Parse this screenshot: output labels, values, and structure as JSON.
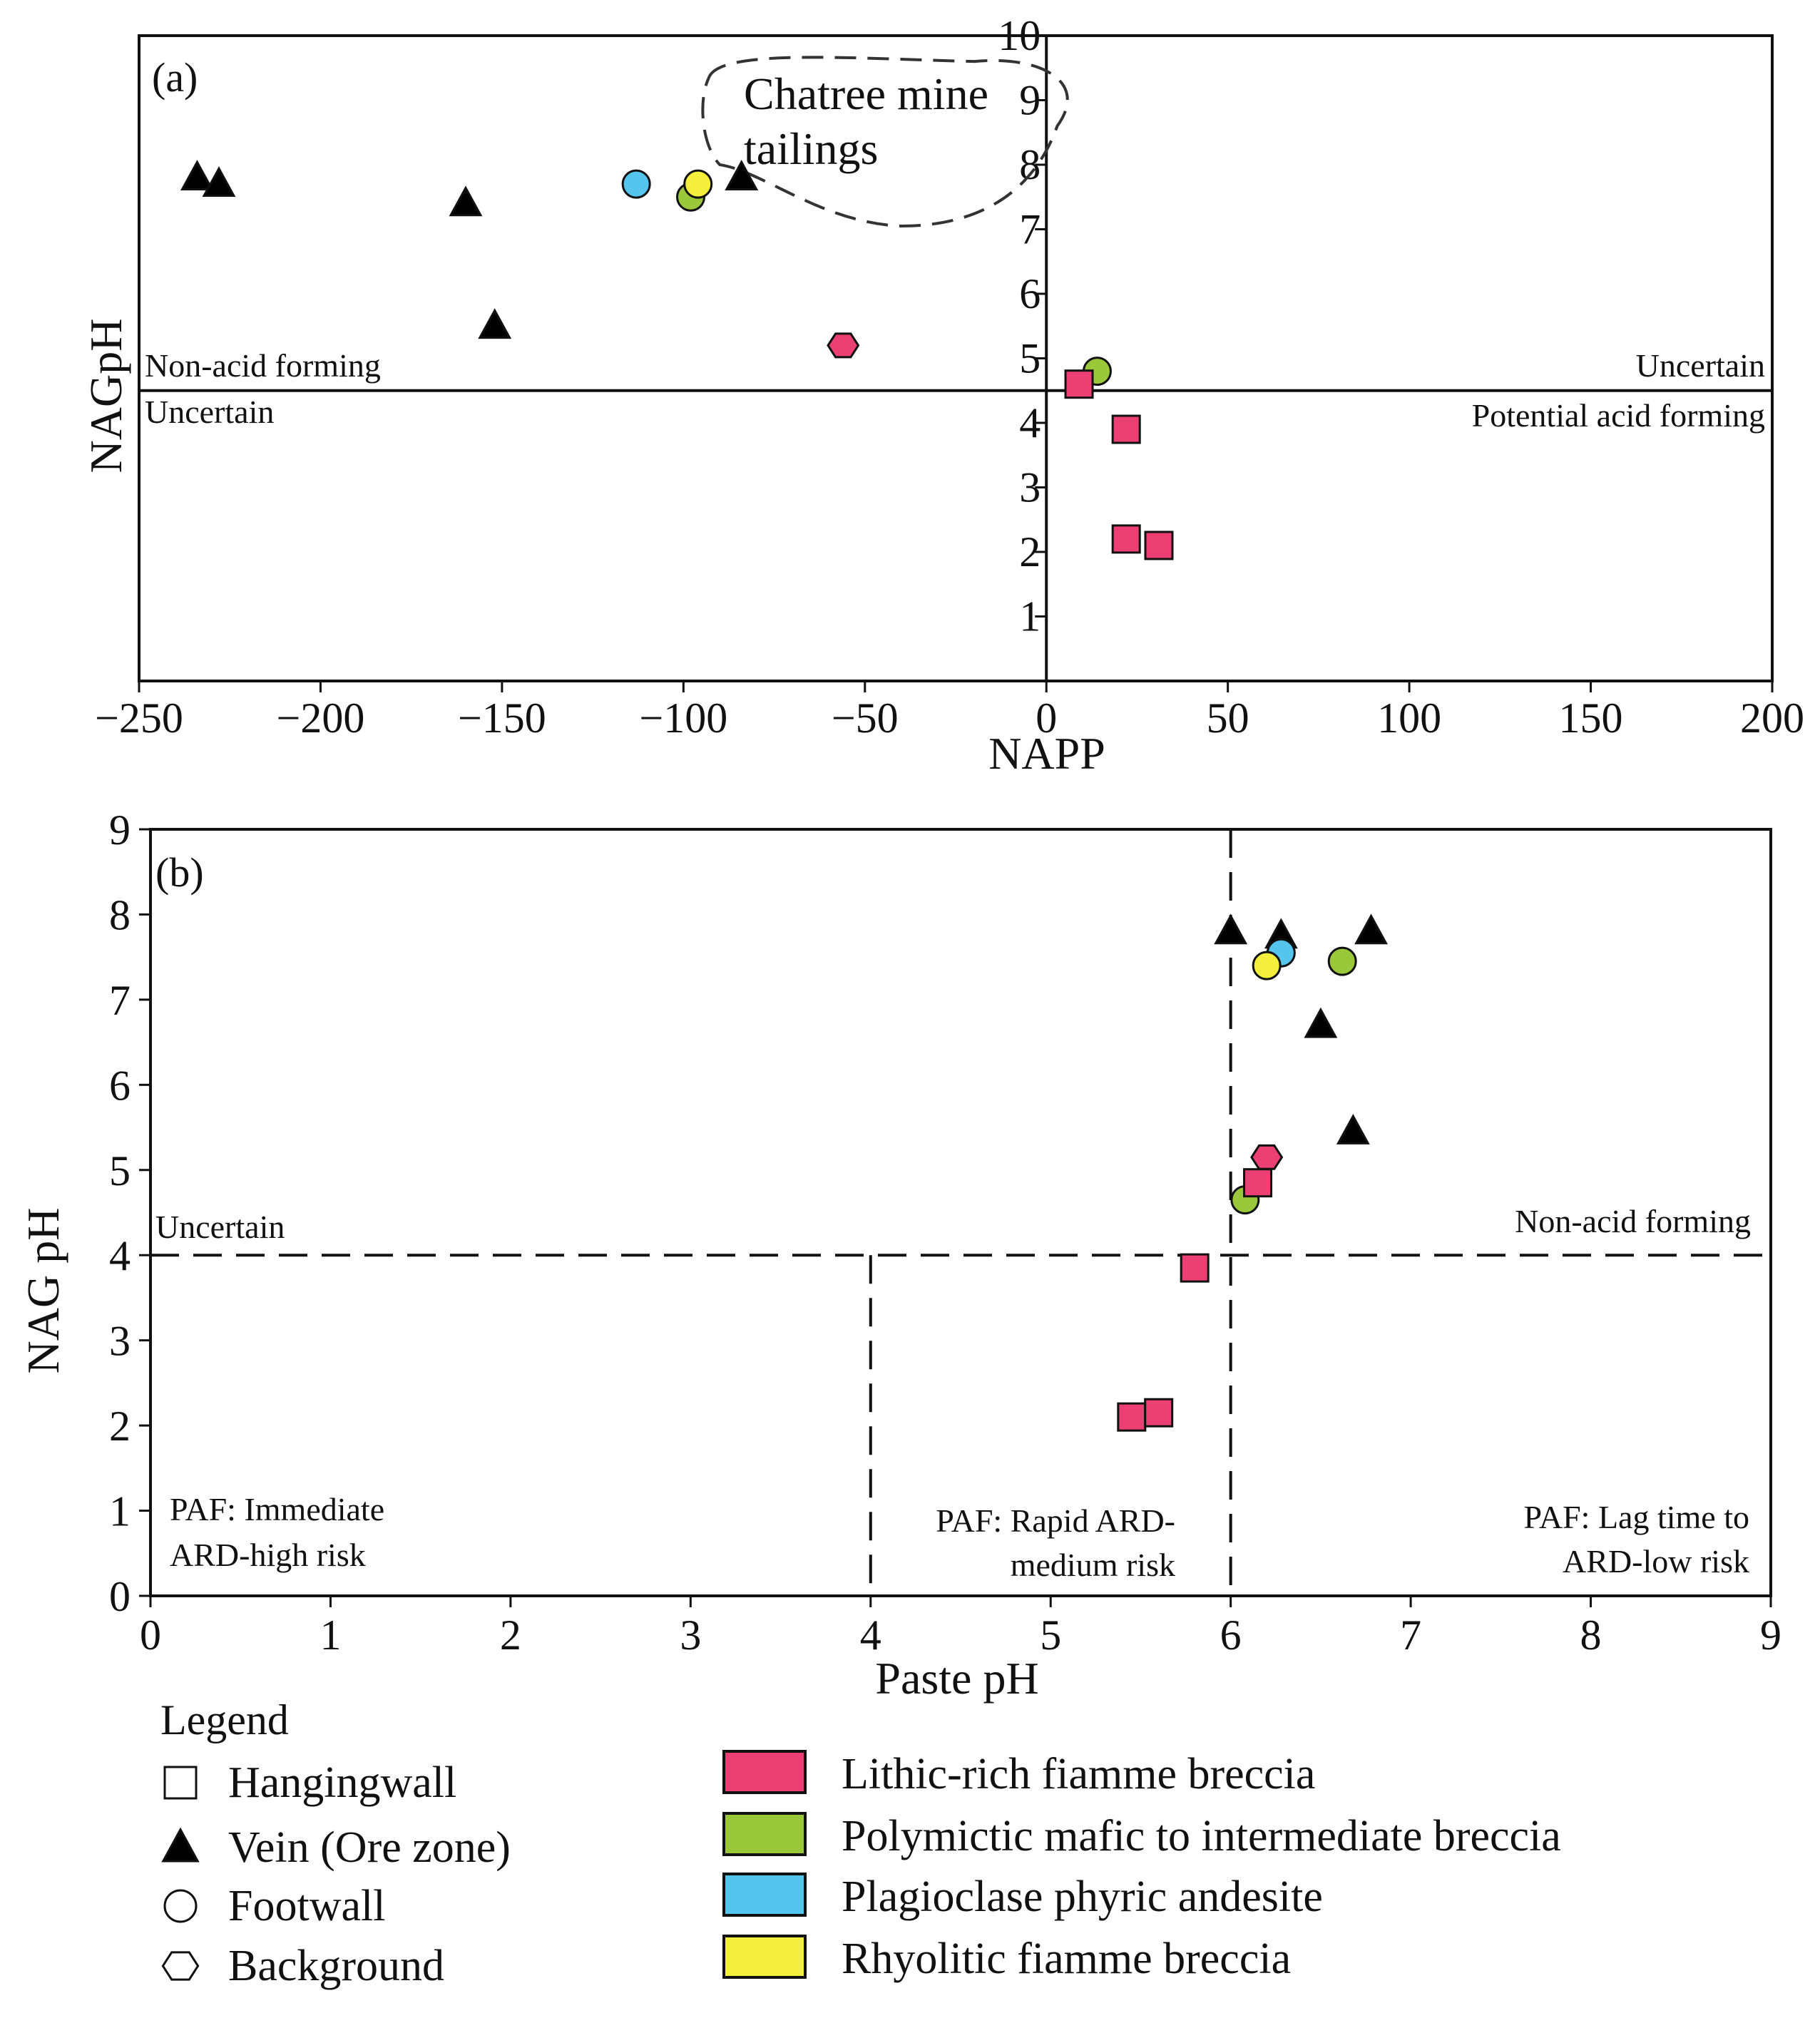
{
  "colors": {
    "lithic": "#ec3f73",
    "polymictic": "#9bc73b",
    "plagioclase": "#56c5ee",
    "rhyolitic": "#f4ee3c",
    "vein": "#000000"
  },
  "chart_data": [
    {
      "type": "scatter",
      "panel_label": "(a)",
      "xlabel": "NAPP",
      "ylabel": "NAGpH",
      "xlim": [
        -250,
        200
      ],
      "ylim": [
        0,
        10
      ],
      "xticks": [
        -250,
        -200,
        -150,
        -100,
        -50,
        0,
        50,
        100,
        150,
        200
      ],
      "xtick_labels": [
        "−250",
        "−200",
        "−150",
        "−100",
        "−50",
        "0",
        "50",
        "100",
        "150",
        "200"
      ],
      "yticks": [
        1,
        2,
        3,
        4,
        5,
        6,
        7,
        8,
        9,
        10
      ],
      "threshold_lines": {
        "x": 0,
        "y": 4.5,
        "style": "solid"
      },
      "regions": [
        {
          "text": "Non-acid forming"
        },
        {
          "text": "Uncertain"
        },
        {
          "text": "Uncertain"
        },
        {
          "text": "Potential acid forming"
        }
      ],
      "annotation": {
        "lines": [
          "Chatree mine",
          "tailings"
        ],
        "outline": "dashed"
      },
      "points": [
        {
          "x": -234,
          "y": 7.8,
          "shape": "triangle",
          "color": "vein"
        },
        {
          "x": -228,
          "y": 7.7,
          "shape": "triangle",
          "color": "vein"
        },
        {
          "x": -160,
          "y": 7.4,
          "shape": "triangle",
          "color": "vein"
        },
        {
          "x": -152,
          "y": 5.5,
          "shape": "triangle",
          "color": "vein"
        },
        {
          "x": -84,
          "y": 7.8,
          "shape": "triangle",
          "color": "vein"
        },
        {
          "x": -113,
          "y": 7.7,
          "shape": "circle",
          "color": "plagioclase"
        },
        {
          "x": -98,
          "y": 7.5,
          "shape": "circle",
          "color": "polymictic"
        },
        {
          "x": -96,
          "y": 7.7,
          "shape": "circle",
          "color": "rhyolitic"
        },
        {
          "x": -56,
          "y": 5.2,
          "shape": "hexagon",
          "color": "lithic"
        },
        {
          "x": 14,
          "y": 4.8,
          "shape": "circle",
          "color": "polymictic"
        },
        {
          "x": 9,
          "y": 4.6,
          "shape": "square",
          "color": "lithic"
        },
        {
          "x": 22,
          "y": 3.9,
          "shape": "square",
          "color": "lithic"
        },
        {
          "x": 22,
          "y": 2.2,
          "shape": "square",
          "color": "lithic"
        },
        {
          "x": 31,
          "y": 2.1,
          "shape": "square",
          "color": "lithic"
        }
      ]
    },
    {
      "type": "scatter",
      "panel_label": "(b)",
      "xlabel": "Paste pH",
      "ylabel": "NAG pH",
      "xlim": [
        0,
        9
      ],
      "ylim": [
        0,
        9
      ],
      "xticks": [
        0,
        1,
        2,
        3,
        4,
        5,
        6,
        7,
        8,
        9
      ],
      "yticks": [
        0,
        1,
        2,
        3,
        4,
        5,
        6,
        7,
        8,
        9
      ],
      "threshold_lines": {
        "y": 4,
        "x": [
          4,
          6
        ],
        "style": "dashed"
      },
      "regions": [
        {
          "lines": [
            "Uncertain"
          ]
        },
        {
          "lines": [
            "Non-acid forming"
          ]
        },
        {
          "lines": [
            "PAF: Immediate",
            "ARD-high risk"
          ]
        },
        {
          "lines": [
            "PAF: Rapid ARD-",
            "medium risk"
          ]
        },
        {
          "lines": [
            "PAF: Lag time to",
            "ARD-low risk"
          ]
        }
      ],
      "points": [
        {
          "x": 6.0,
          "y": 7.8,
          "shape": "triangle",
          "color": "vein"
        },
        {
          "x": 6.28,
          "y": 7.75,
          "shape": "triangle",
          "color": "vein"
        },
        {
          "x": 6.78,
          "y": 7.8,
          "shape": "triangle",
          "color": "vein"
        },
        {
          "x": 6.5,
          "y": 6.7,
          "shape": "triangle",
          "color": "vein"
        },
        {
          "x": 6.68,
          "y": 5.45,
          "shape": "triangle",
          "color": "vein"
        },
        {
          "x": 6.28,
          "y": 7.55,
          "shape": "circle",
          "color": "plagioclase"
        },
        {
          "x": 6.2,
          "y": 7.4,
          "shape": "circle",
          "color": "rhyolitic"
        },
        {
          "x": 6.62,
          "y": 7.45,
          "shape": "circle",
          "color": "polymictic"
        },
        {
          "x": 6.08,
          "y": 4.65,
          "shape": "circle",
          "color": "polymictic"
        },
        {
          "x": 6.2,
          "y": 5.15,
          "shape": "hexagon",
          "color": "lithic"
        },
        {
          "x": 6.15,
          "y": 4.85,
          "shape": "square",
          "color": "lithic"
        },
        {
          "x": 5.8,
          "y": 3.85,
          "shape": "square",
          "color": "lithic"
        },
        {
          "x": 5.45,
          "y": 2.1,
          "shape": "square",
          "color": "lithic"
        },
        {
          "x": 5.6,
          "y": 2.15,
          "shape": "square",
          "color": "lithic"
        }
      ]
    }
  ],
  "legend": {
    "title": "Legend",
    "shapes": [
      {
        "shape": "square",
        "label": "Hangingwall"
      },
      {
        "shape": "triangle",
        "label": "Vein (Ore zone)"
      },
      {
        "shape": "circle",
        "label": "Footwall"
      },
      {
        "shape": "hexagon",
        "label": "Background"
      }
    ],
    "colors": [
      {
        "color": "lithic",
        "label": "Lithic-rich fiamme breccia"
      },
      {
        "color": "polymictic",
        "label": "Polymictic mafic to intermediate breccia"
      },
      {
        "color": "plagioclase",
        "label": "Plagioclase phyric andesite"
      },
      {
        "color": "rhyolitic",
        "label": "Rhyolitic fiamme breccia"
      }
    ]
  }
}
